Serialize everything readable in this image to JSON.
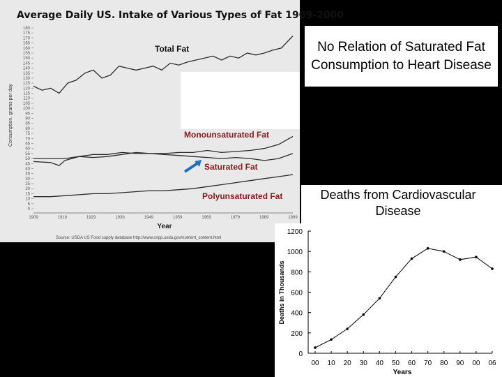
{
  "fat_chart": {
    "title": "Average Daily US. Intake of Various Types of Fat 1909-2000",
    "ylabel": "Consumption, grams per day",
    "xlabel": "Year",
    "source": "Source: USDA US Food supply database    http://www.cnpp.usda.gov/nutrient_content.html",
    "annotation": "Saturated Fat"
  },
  "title_box": {
    "text": "No Relation of Saturated Fat Consumption to Heart Disease"
  },
  "deaths_chart": {
    "title": "Deaths from Cardiovascular Disease"
  },
  "colors": {
    "brand_red": "#8b1a1a",
    "arrow_blue": "#1f6fc0",
    "background": "#000000"
  },
  "chart_data": [
    {
      "type": "line",
      "title": "Average Daily US. Intake of Various Types of Fat 1909-2000",
      "xlabel": "Year",
      "ylabel": "Consumption, grams per day",
      "xlim": [
        1909,
        2000
      ],
      "ylim": [
        0,
        180
      ],
      "y_ticks": [
        0,
        5,
        10,
        15,
        20,
        25,
        30,
        35,
        40,
        45,
        50,
        55,
        60,
        65,
        70,
        75,
        80,
        85,
        90,
        95,
        100,
        105,
        110,
        115,
        120,
        125,
        130,
        135,
        140,
        145,
        150,
        155,
        160,
        165,
        170,
        175,
        180
      ],
      "x_tick_labels": [
        "1909",
        "1919",
        "1929",
        "1939",
        "1949",
        "1959",
        "1969",
        "1979",
        "1989",
        "1999"
      ],
      "series": [
        {
          "name": "Total Fat",
          "label": "Total Fat",
          "x": [
            1909,
            1912,
            1915,
            1918,
            1921,
            1924,
            1927,
            1930,
            1933,
            1936,
            1939,
            1942,
            1945,
            1948,
            1951,
            1954,
            1957,
            1960,
            1963,
            1966,
            1969,
            1972,
            1975,
            1978,
            1981,
            1984,
            1987,
            1990,
            1993,
            1996,
            2000
          ],
          "y": [
            122,
            118,
            120,
            115,
            125,
            128,
            135,
            138,
            130,
            133,
            142,
            140,
            138,
            140,
            142,
            138,
            145,
            143,
            146,
            148,
            150,
            152,
            148,
            152,
            150,
            155,
            153,
            155,
            158,
            160,
            172
          ]
        },
        {
          "name": "Monounsaturated Fat",
          "label": "Monounsaturated Fat",
          "x": [
            1909,
            1915,
            1920,
            1925,
            1930,
            1935,
            1940,
            1945,
            1950,
            1955,
            1960,
            1965,
            1970,
            1975,
            1980,
            1985,
            1990,
            1995,
            2000
          ],
          "y": [
            50,
            50,
            50,
            52,
            54,
            54,
            56,
            55,
            55,
            55,
            56,
            56,
            58,
            56,
            57,
            58,
            60,
            64,
            72
          ]
        },
        {
          "name": "Saturated Fat",
          "label": "Saturated Fat",
          "x": [
            1909,
            1915,
            1918,
            1920,
            1925,
            1930,
            1935,
            1940,
            1945,
            1950,
            1955,
            1960,
            1965,
            1970,
            1975,
            1980,
            1985,
            1990,
            1995,
            2000
          ],
          "y": [
            47,
            46,
            43,
            48,
            52,
            51,
            52,
            54,
            56,
            55,
            54,
            53,
            52,
            51,
            50,
            51,
            50,
            48,
            50,
            55
          ]
        },
        {
          "name": "Polyunsaturated Fat",
          "label": "Polyunsaturated Fat",
          "x": [
            1909,
            1915,
            1920,
            1925,
            1930,
            1935,
            1940,
            1945,
            1950,
            1955,
            1960,
            1965,
            1970,
            1975,
            1980,
            1985,
            1990,
            1995,
            2000
          ],
          "y": [
            12,
            12,
            13,
            14,
            15,
            15,
            16,
            17,
            18,
            18,
            19,
            20,
            22,
            24,
            26,
            28,
            30,
            32,
            34
          ]
        }
      ]
    },
    {
      "type": "line",
      "title": "Deaths from Cardiovascular Disease",
      "xlabel": "Years",
      "ylabel": "Deaths in Thousands",
      "categories": [
        "00",
        "10",
        "20",
        "30",
        "40",
        "50",
        "60",
        "70",
        "80",
        "90",
        "00",
        "06"
      ],
      "values": [
        55,
        135,
        240,
        380,
        540,
        750,
        930,
        1030,
        1000,
        920,
        945,
        830
      ],
      "y_ticks": [
        0,
        200,
        400,
        600,
        800,
        1000,
        1200
      ],
      "ylim": [
        0,
        1200
      ]
    }
  ]
}
